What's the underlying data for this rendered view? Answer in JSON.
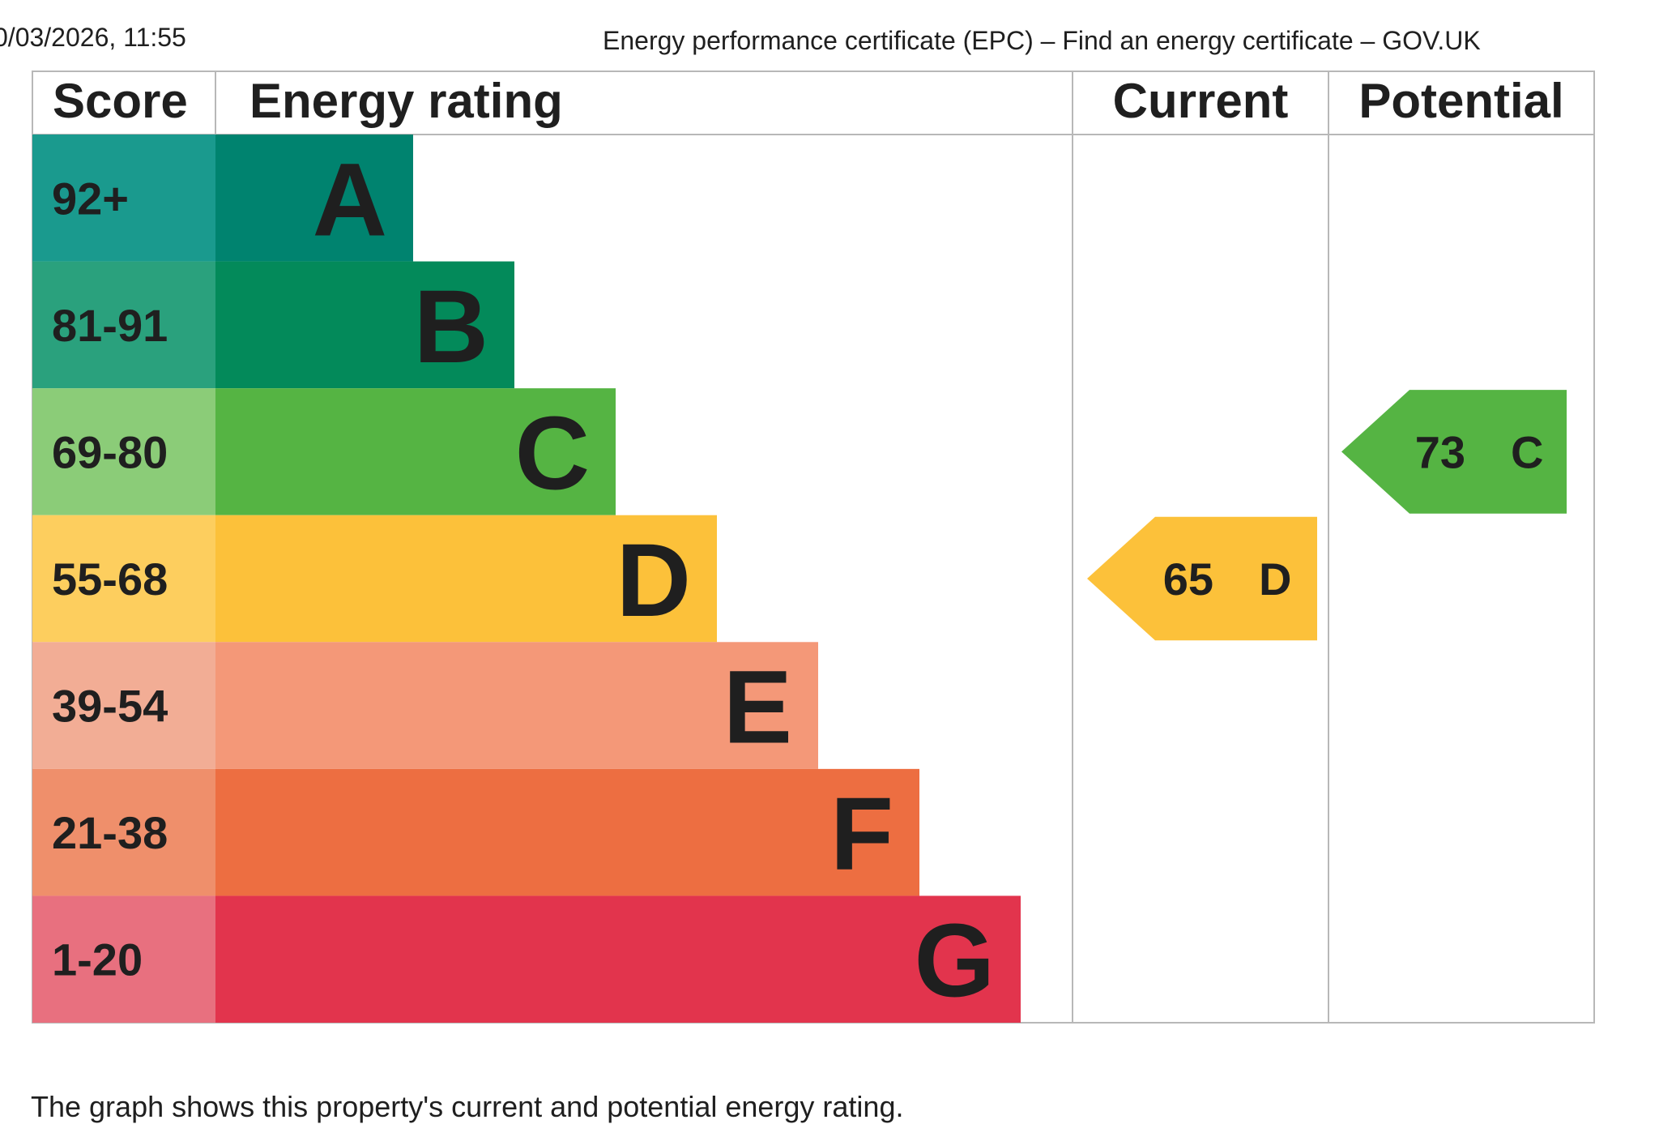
{
  "page": {
    "timestamp": "0/03/2026, 11:55",
    "doc_title": "Energy performance certificate (EPC) – Find an energy certificate – GOV.UK",
    "footer": "The graph shows this property's current and potential energy rating."
  },
  "chart_data": {
    "type": "bar",
    "headers": {
      "score": "Score",
      "rating": "Energy rating",
      "current": "Current",
      "potential": "Potential"
    },
    "bands": [
      {
        "letter": "A",
        "score": "92+",
        "color": "#00836f",
        "score_color": "#1a9a8e"
      },
      {
        "letter": "B",
        "score": "81-91",
        "color": "#038a5a",
        "score_color": "#2aa17d"
      },
      {
        "letter": "C",
        "score": "69-80",
        "color": "#55b443",
        "score_color": "#8bcc78"
      },
      {
        "letter": "D",
        "score": "55-68",
        "color": "#fcc13a",
        "score_color": "#fdce5e"
      },
      {
        "letter": "E",
        "score": "39-54",
        "color": "#f49878",
        "score_color": "#f2ad95"
      },
      {
        "letter": "F",
        "score": "21-38",
        "color": "#ed6e41",
        "score_color": "#ef8f6b"
      },
      {
        "letter": "G",
        "score": "1-20",
        "color": "#e2344d",
        "score_color": "#e8707f"
      }
    ],
    "current": {
      "value": 65,
      "letter": "D",
      "color": "#fcc13a",
      "band_index": 3
    },
    "potential": {
      "value": 73,
      "letter": "C",
      "color": "#55b443",
      "band_index": 2
    }
  }
}
